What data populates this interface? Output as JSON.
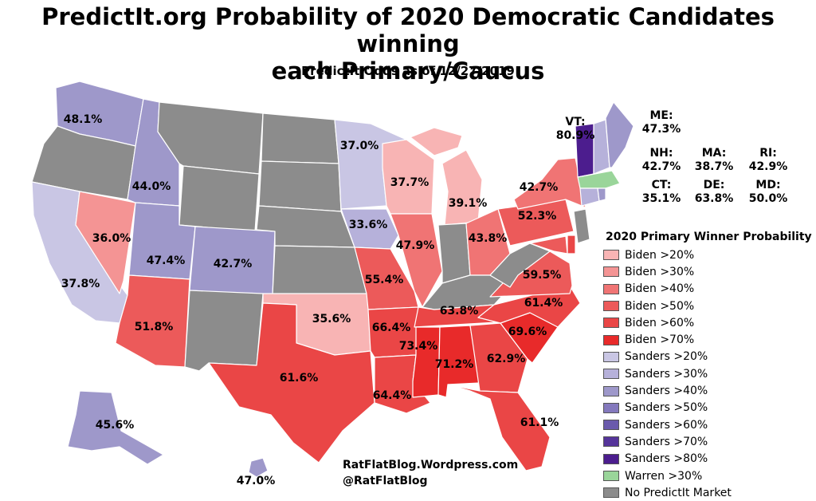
{
  "title_line1": "PredictIt.org Probability of 2020 Democratic Candidates winning",
  "title_line2": "each Primary/Caucus",
  "subtitle": "PredictIt Odds as of 12/27/2019",
  "legend": {
    "title": "2020 Primary Winner Probability",
    "items": [
      {
        "label": "Biden >20%",
        "color": "#f8b4b4"
      },
      {
        "label": "Biden >30%",
        "color": "#f49494"
      },
      {
        "label": "Biden >40%",
        "color": "#f07474"
      },
      {
        "label": "Biden >50%",
        "color": "#ec5a5a"
      },
      {
        "label": "Biden >60%",
        "color": "#ea4646"
      },
      {
        "label": "Biden >70%",
        "color": "#e82a2a"
      },
      {
        "label": "Sanders >20%",
        "color": "#c9c6e4"
      },
      {
        "label": "Sanders >30%",
        "color": "#b6b1da"
      },
      {
        "label": "Sanders >40%",
        "color": "#9e98ca"
      },
      {
        "label": "Sanders >50%",
        "color": "#8479bd"
      },
      {
        "label": "Sanders >60%",
        "color": "#6a5aac"
      },
      {
        "label": "Sanders >70%",
        "color": "#55349a"
      },
      {
        "label": "Sanders >80%",
        "color": "#4c1d8e"
      },
      {
        "label": "Warren >30%",
        "color": "#9ad59a"
      },
      {
        "label": "No PredictIt Market",
        "color": "#8c8c8c"
      }
    ]
  },
  "states": {
    "WA": "48.1%",
    "OR": "",
    "CA": "37.8%",
    "NV": "36.0%",
    "ID": "44.0%",
    "MT": "",
    "WY": "",
    "UT": "47.4%",
    "CO": "42.7%",
    "AZ": "51.8%",
    "NM": "",
    "ND": "",
    "SD": "",
    "NE": "",
    "KS": "",
    "OK": "35.6%",
    "TX": "61.6%",
    "MN": "37.0%",
    "IA": "33.6%",
    "MO": "55.4%",
    "AR": "66.4%",
    "LA": "64.4%",
    "WI": "37.7%",
    "IL": "47.9%",
    "MI": "39.1%",
    "IN": "",
    "OH": "43.8%",
    "KY": "",
    "TN": "63.8%",
    "MS": "73.4%",
    "AL": "71.2%",
    "GA": "62.9%",
    "FL": "61.1%",
    "SC": "69.6%",
    "NC": "61.4%",
    "VA": "59.5%",
    "WV": "",
    "PA": "52.3%",
    "NY": "42.7%",
    "AK": "45.6%",
    "HI": "47.0%"
  },
  "northeast": {
    "VT": {
      "code": "VT:",
      "value": "80.9%"
    },
    "ME": {
      "code": "ME:",
      "value": "47.3%"
    },
    "NH": {
      "code": "NH:",
      "value": "42.7%"
    },
    "MA": {
      "code": "MA:",
      "value": "38.7%"
    },
    "RI": {
      "code": "RI:",
      "value": "42.9%"
    },
    "CT": {
      "code": "CT:",
      "value": "35.1%"
    },
    "DE": {
      "code": "DE:",
      "value": "63.8%"
    },
    "MD": {
      "code": "MD:",
      "value": "50.0%"
    }
  },
  "credit": {
    "site": "RatFlatBlog.Wordpress.com",
    "handle": "@RatFlatBlog"
  }
}
